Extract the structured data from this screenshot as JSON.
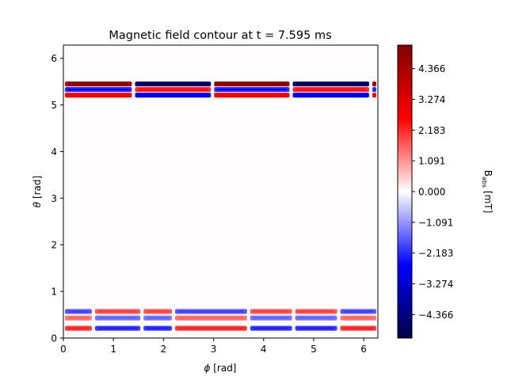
{
  "chart_data": {
    "type": "heatmap",
    "title": "Magnetic field contour at t = 7.595 ms",
    "xlabel": {
      "symbol": "ϕ",
      "unit": " [rad]"
    },
    "ylabel": {
      "symbol": "θ",
      "unit": " [rad]"
    },
    "xlim": [
      0,
      6.283
    ],
    "ylim": [
      0,
      6.283
    ],
    "xticks": [
      0,
      1,
      2,
      3,
      4,
      5,
      6
    ],
    "xtick_labels": [
      "0",
      "1",
      "2",
      "3",
      "4",
      "5",
      "6"
    ],
    "yticks": [
      0,
      1,
      2,
      3,
      4,
      5,
      6
    ],
    "ytick_labels": [
      "0",
      "1",
      "2",
      "3",
      "4",
      "5",
      "6"
    ],
    "colorbar": {
      "label_main": "B",
      "label_sub": "abs",
      "label_unit": " [mT]",
      "range": [
        -5.2,
        5.2
      ],
      "colormap": "seismic",
      "ticks": [
        4.366,
        3.274,
        2.183,
        1.091,
        0.0,
        -1.091,
        -2.183,
        -3.274,
        -4.366
      ],
      "tick_labels": [
        "4.366",
        "3.274",
        "2.183",
        "1.091",
        "0.000",
        "−1.091",
        "−2.183",
        "−3.274",
        "−4.366"
      ]
    },
    "field_bands": {
      "upper": [
        {
          "theta": 5.45,
          "amplitude": 4.4
        },
        {
          "theta": 5.33,
          "amplitude": -2.2
        },
        {
          "theta": 5.21,
          "amplitude": 2.6
        }
      ],
      "lower": [
        {
          "theta": 0.57,
          "amplitude": -1.7
        },
        {
          "theta": 0.43,
          "amplitude": 1.4
        },
        {
          "theta": 0.21,
          "amplitude": 2.0
        }
      ],
      "upper_segments": [
        [
          0.0,
          1.4,
          1
        ],
        [
          1.4,
          2.98,
          -1
        ],
        [
          2.98,
          4.55,
          1
        ],
        [
          4.55,
          6.14,
          -1
        ],
        [
          6.14,
          6.283,
          1
        ]
      ],
      "lower_segments": [
        [
          0.0,
          0.6,
          1
        ],
        [
          0.6,
          1.57,
          -1
        ],
        [
          1.57,
          2.2,
          -1
        ],
        [
          2.2,
          3.7,
          1
        ],
        [
          3.7,
          4.6,
          -1
        ],
        [
          4.6,
          5.5,
          -1
        ],
        [
          5.5,
          6.283,
          1
        ]
      ]
    }
  }
}
